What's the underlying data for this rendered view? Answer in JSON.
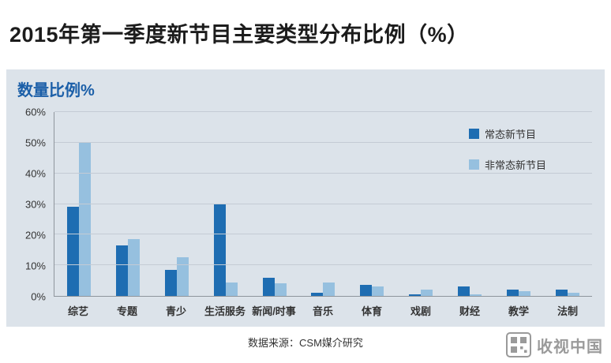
{
  "page": {
    "title": "2015年第一季度新节目主要类型分布比例（%）",
    "source": "数据来源：CSM媒介研究",
    "watermark": "收视中国"
  },
  "chart": {
    "title_label": "数量比例%"
  },
  "chart_data": {
    "type": "bar",
    "title": "数量比例%",
    "categories": [
      "综艺",
      "专题",
      "青少",
      "生活服务",
      "新闻/时事",
      "音乐",
      "体育",
      "戏剧",
      "财经",
      "教学",
      "法制"
    ],
    "series": [
      {
        "name": "常态新节目",
        "color": "#1e6db2",
        "values": [
          29,
          16.5,
          8.5,
          30,
          6,
          1,
          3.5,
          0.5,
          3,
          2,
          2
        ]
      },
      {
        "name": "非常态新节目",
        "color": "#96c0df",
        "values": [
          50,
          18.5,
          12.5,
          4.5,
          4,
          4.5,
          3,
          2,
          0.5,
          1.5,
          1
        ]
      }
    ],
    "xlabel": "",
    "ylabel": "",
    "ylim": [
      0,
      60
    ],
    "ytick_step": 10,
    "ytick_suffix": "%",
    "grid": true,
    "legend_position": "top-right"
  }
}
